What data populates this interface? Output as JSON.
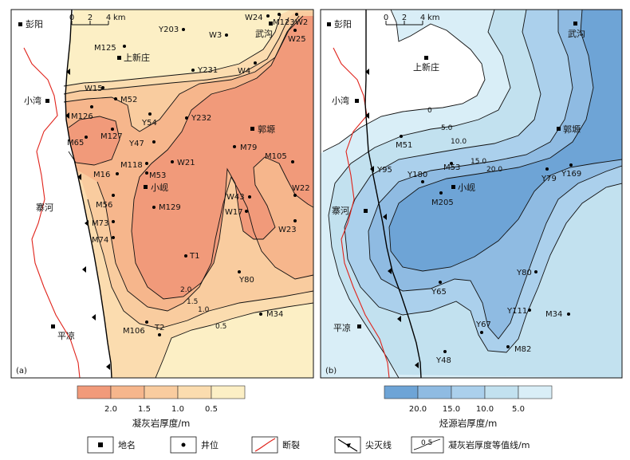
{
  "colors": {
    "tuff_bins": [
      "#f19a7a",
      "#f6b68c",
      "#f9cc9f",
      "#fbdcaf",
      "#fcefc5"
    ],
    "source_bins": [
      "#6ea4d6",
      "#8fbbe2",
      "#abd0ec",
      "#c2e1ef",
      "#d9eef7"
    ],
    "fault": "#e0231b",
    "boundary": "#000000"
  },
  "scale_bar": {
    "ticks": [
      "0",
      "2",
      "4"
    ],
    "unit": "km"
  },
  "panel_a": {
    "tag": "(a)",
    "places": [
      {
        "id": "pengyang",
        "name": "彭阳"
      },
      {
        "id": "shangxinzhuang",
        "name": "上新庄"
      },
      {
        "id": "xiaowan",
        "name": "小湾"
      },
      {
        "id": "zhaihe",
        "name": "寨河"
      },
      {
        "id": "pingliang",
        "name": "平凉"
      },
      {
        "id": "wugou",
        "name": "武沟"
      },
      {
        "id": "guoyuan",
        "name": "郭塬"
      },
      {
        "id": "xiaoxian",
        "name": "小岘"
      }
    ],
    "wells": [
      "Y203",
      "W24",
      "M123",
      "W2",
      "W3",
      "W25",
      "M125",
      "Y231",
      "W4",
      "W15",
      "M52",
      "M126",
      "Y54",
      "Y232",
      "M65",
      "M127",
      "Y47",
      "M79",
      "M118",
      "W21",
      "M105",
      "M16",
      "M53",
      "M56",
      "M129",
      "W43",
      "W22",
      "W17",
      "M73",
      "M74",
      "W23",
      "T1",
      "Y80",
      "M34",
      "M106",
      "T2"
    ],
    "contours": [
      "2.0",
      "1.5",
      "1.0",
      "0.5"
    ]
  },
  "panel_b": {
    "tag": "(b)",
    "places": [
      {
        "id": "pengyang",
        "name": "彭阳"
      },
      {
        "id": "wugou",
        "name": "武沟"
      },
      {
        "id": "shangxinzhuang",
        "name": "上新庄"
      },
      {
        "id": "xiaowan",
        "name": "小湾"
      },
      {
        "id": "guoyuan",
        "name": "郭塬"
      },
      {
        "id": "xiaoxian",
        "name": "小岘"
      },
      {
        "id": "zhaihe",
        "name": "寨河"
      },
      {
        "id": "pingliang",
        "name": "平凉"
      }
    ],
    "wells": [
      "M51",
      "Y95",
      "M53",
      "Y180",
      "Y79",
      "Y169",
      "M205",
      "Y80",
      "Y65",
      "Y111",
      "M34",
      "Y67",
      "M82",
      "Y48"
    ],
    "contours": [
      "0",
      "5.0",
      "10.0",
      "15.0",
      "20.0"
    ]
  },
  "legend_tuff": {
    "title": "凝灰岩厚度/m",
    "ticks": [
      "2.0",
      "1.5",
      "1.0",
      "0.5"
    ]
  },
  "legend_source": {
    "title": "烃源岩厚度/m",
    "ticks": [
      "20.0",
      "15.0",
      "10.0",
      "5.0"
    ]
  },
  "key": [
    {
      "id": "place",
      "label": "地名"
    },
    {
      "id": "well",
      "label": "井位"
    },
    {
      "id": "fault",
      "label": "断裂"
    },
    {
      "id": "pinchout",
      "label": "尖灭线"
    },
    {
      "id": "isoline",
      "sample": "0.5",
      "label": "凝灰岩厚度等值线/m"
    }
  ]
}
